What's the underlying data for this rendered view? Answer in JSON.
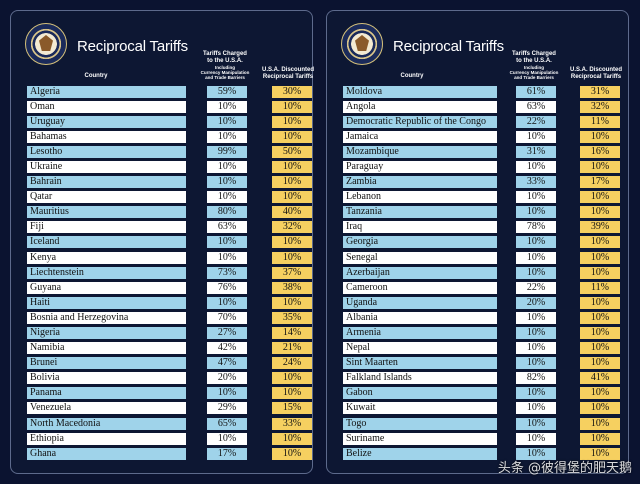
{
  "left": {
    "title": "Reciprocal Tariffs",
    "headers": {
      "country": "Country",
      "charged_line1": "Tariffs Charged",
      "charged_line2": "to the U.S.A.",
      "charged_line3": "Including",
      "charged_line4": "Currency Manipulation",
      "charged_line5": "and Trade Barriers",
      "disc_line1": "U.S.A. Discounted",
      "disc_line2": "Reciprocal Tariffs"
    },
    "rows": [
      {
        "country": "Algeria",
        "charged": "59%",
        "disc": "30%"
      },
      {
        "country": "Oman",
        "charged": "10%",
        "disc": "10%"
      },
      {
        "country": "Uruguay",
        "charged": "10%",
        "disc": "10%"
      },
      {
        "country": "Bahamas",
        "charged": "10%",
        "disc": "10%"
      },
      {
        "country": "Lesotho",
        "charged": "99%",
        "disc": "50%"
      },
      {
        "country": "Ukraine",
        "charged": "10%",
        "disc": "10%"
      },
      {
        "country": "Bahrain",
        "charged": "10%",
        "disc": "10%"
      },
      {
        "country": "Qatar",
        "charged": "10%",
        "disc": "10%"
      },
      {
        "country": "Mauritius",
        "charged": "80%",
        "disc": "40%"
      },
      {
        "country": "Fiji",
        "charged": "63%",
        "disc": "32%"
      },
      {
        "country": "Iceland",
        "charged": "10%",
        "disc": "10%"
      },
      {
        "country": "Kenya",
        "charged": "10%",
        "disc": "10%"
      },
      {
        "country": "Liechtenstein",
        "charged": "73%",
        "disc": "37%"
      },
      {
        "country": "Guyana",
        "charged": "76%",
        "disc": "38%"
      },
      {
        "country": "Haiti",
        "charged": "10%",
        "disc": "10%"
      },
      {
        "country": "Bosnia and Herzegovina",
        "charged": "70%",
        "disc": "35%"
      },
      {
        "country": "Nigeria",
        "charged": "27%",
        "disc": "14%"
      },
      {
        "country": "Namibia",
        "charged": "42%",
        "disc": "21%"
      },
      {
        "country": "Brunei",
        "charged": "47%",
        "disc": "24%"
      },
      {
        "country": "Bolivia",
        "charged": "20%",
        "disc": "10%"
      },
      {
        "country": "Panama",
        "charged": "10%",
        "disc": "10%"
      },
      {
        "country": "Venezuela",
        "charged": "29%",
        "disc": "15%"
      },
      {
        "country": "North Macedonia",
        "charged": "65%",
        "disc": "33%"
      },
      {
        "country": "Ethiopia",
        "charged": "10%",
        "disc": "10%"
      },
      {
        "country": "Ghana",
        "charged": "17%",
        "disc": "10%"
      }
    ]
  },
  "right": {
    "title": "Reciprocal Tariffs",
    "headers": {
      "country": "Country",
      "charged_line1": "Tariffs Charged",
      "charged_line2": "to the U.S.A.",
      "charged_line3": "Including",
      "charged_line4": "Currency Manipulation",
      "charged_line5": "and Trade Barriers",
      "disc_line1": "U.S.A. Discounted",
      "disc_line2": "Reciprocal Tariffs"
    },
    "rows": [
      {
        "country": "Moldova",
        "charged": "61%",
        "disc": "31%"
      },
      {
        "country": "Angola",
        "charged": "63%",
        "disc": "32%"
      },
      {
        "country": "Democratic Republic of the Congo",
        "charged": "22%",
        "disc": "11%"
      },
      {
        "country": "Jamaica",
        "charged": "10%",
        "disc": "10%"
      },
      {
        "country": "Mozambique",
        "charged": "31%",
        "disc": "16%"
      },
      {
        "country": "Paraguay",
        "charged": "10%",
        "disc": "10%"
      },
      {
        "country": "Zambia",
        "charged": "33%",
        "disc": "17%"
      },
      {
        "country": "Lebanon",
        "charged": "10%",
        "disc": "10%"
      },
      {
        "country": "Tanzania",
        "charged": "10%",
        "disc": "10%"
      },
      {
        "country": "Iraq",
        "charged": "78%",
        "disc": "39%"
      },
      {
        "country": "Georgia",
        "charged": "10%",
        "disc": "10%"
      },
      {
        "country": "Senegal",
        "charged": "10%",
        "disc": "10%"
      },
      {
        "country": "Azerbaijan",
        "charged": "10%",
        "disc": "10%"
      },
      {
        "country": "Cameroon",
        "charged": "22%",
        "disc": "11%"
      },
      {
        "country": "Uganda",
        "charged": "20%",
        "disc": "10%"
      },
      {
        "country": "Albania",
        "charged": "10%",
        "disc": "10%"
      },
      {
        "country": "Armenia",
        "charged": "10%",
        "disc": "10%"
      },
      {
        "country": "Nepal",
        "charged": "10%",
        "disc": "10%"
      },
      {
        "country": "Sint Maarten",
        "charged": "10%",
        "disc": "10%"
      },
      {
        "country": "Falkland Islands",
        "charged": "82%",
        "disc": "41%"
      },
      {
        "country": "Gabon",
        "charged": "10%",
        "disc": "10%"
      },
      {
        "country": "Kuwait",
        "charged": "10%",
        "disc": "10%"
      },
      {
        "country": "Togo",
        "charged": "10%",
        "disc": "10%"
      },
      {
        "country": "Suriname",
        "charged": "10%",
        "disc": "10%"
      },
      {
        "country": "Belize",
        "charged": "10%",
        "disc": "10%"
      }
    ]
  },
  "watermark": "头条 @彼得堡的肥天鹅",
  "colors": {
    "background": "#0b1330",
    "row_blue": "#9fd3ea",
    "row_white": "#ffffff",
    "discount_yellow": "#f6d060"
  }
}
